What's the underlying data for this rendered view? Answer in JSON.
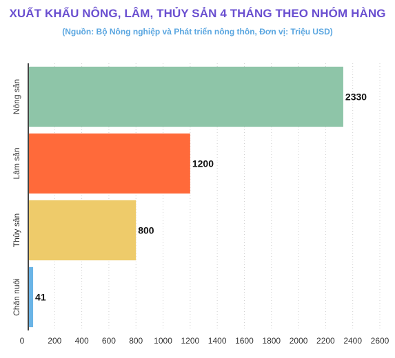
{
  "title": "XUẤT KHẨU NÔNG, LÂM, THỦY SẢN 4 THÁNG THEO NHÓM HÀNG",
  "subtitle": "(Nguồn: Bộ Nông nghiệp và Phát triển nông thôn, Đơn vị: Triệu USD)",
  "chart_data": {
    "type": "bar",
    "orientation": "horizontal",
    "categories": [
      "Nông sản",
      "Lâm sản",
      "Thủy sản",
      "Chăn nuôi"
    ],
    "values": [
      2330,
      1200,
      800,
      41
    ],
    "colors": [
      "#8ec5a8",
      "#ff6a3a",
      "#eecb6a",
      "#6ab4e6"
    ],
    "xlim": [
      0,
      2600
    ],
    "xticks": [
      0,
      200,
      400,
      600,
      800,
      1000,
      1200,
      1400,
      1600,
      1800,
      2000,
      2200,
      2400,
      2600
    ],
    "grid": "vertical-dotted",
    "data_labels": true
  }
}
